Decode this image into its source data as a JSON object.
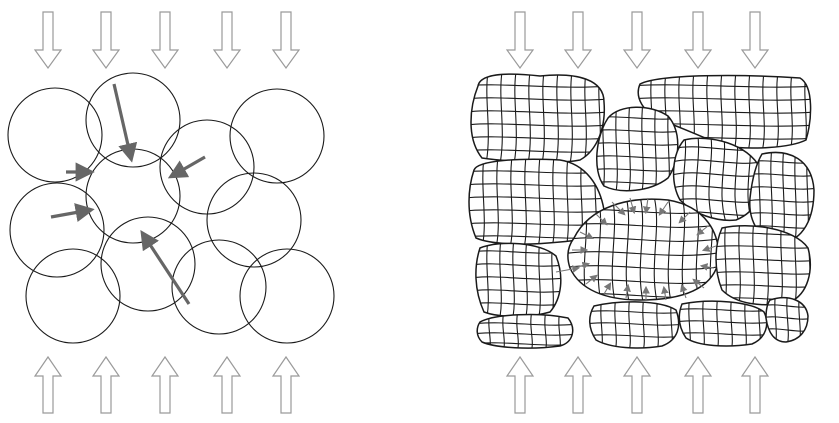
{
  "colors": {
    "background": "#ffffff",
    "particle_stroke": "#1a1a1a",
    "load_arrow_stroke": "#9a9a9a",
    "contact_force": "#666666"
  },
  "panels": [
    {
      "id": "before",
      "elements": [
        "load-arrows-top",
        "circular-particles",
        "contact-force-arrows",
        "load-arrows-bottom"
      ]
    },
    {
      "id": "after",
      "elements": [
        "load-arrows-top",
        "deformed-meshed-grains",
        "contact-force-arrows",
        "load-arrows-bottom"
      ]
    }
  ]
}
